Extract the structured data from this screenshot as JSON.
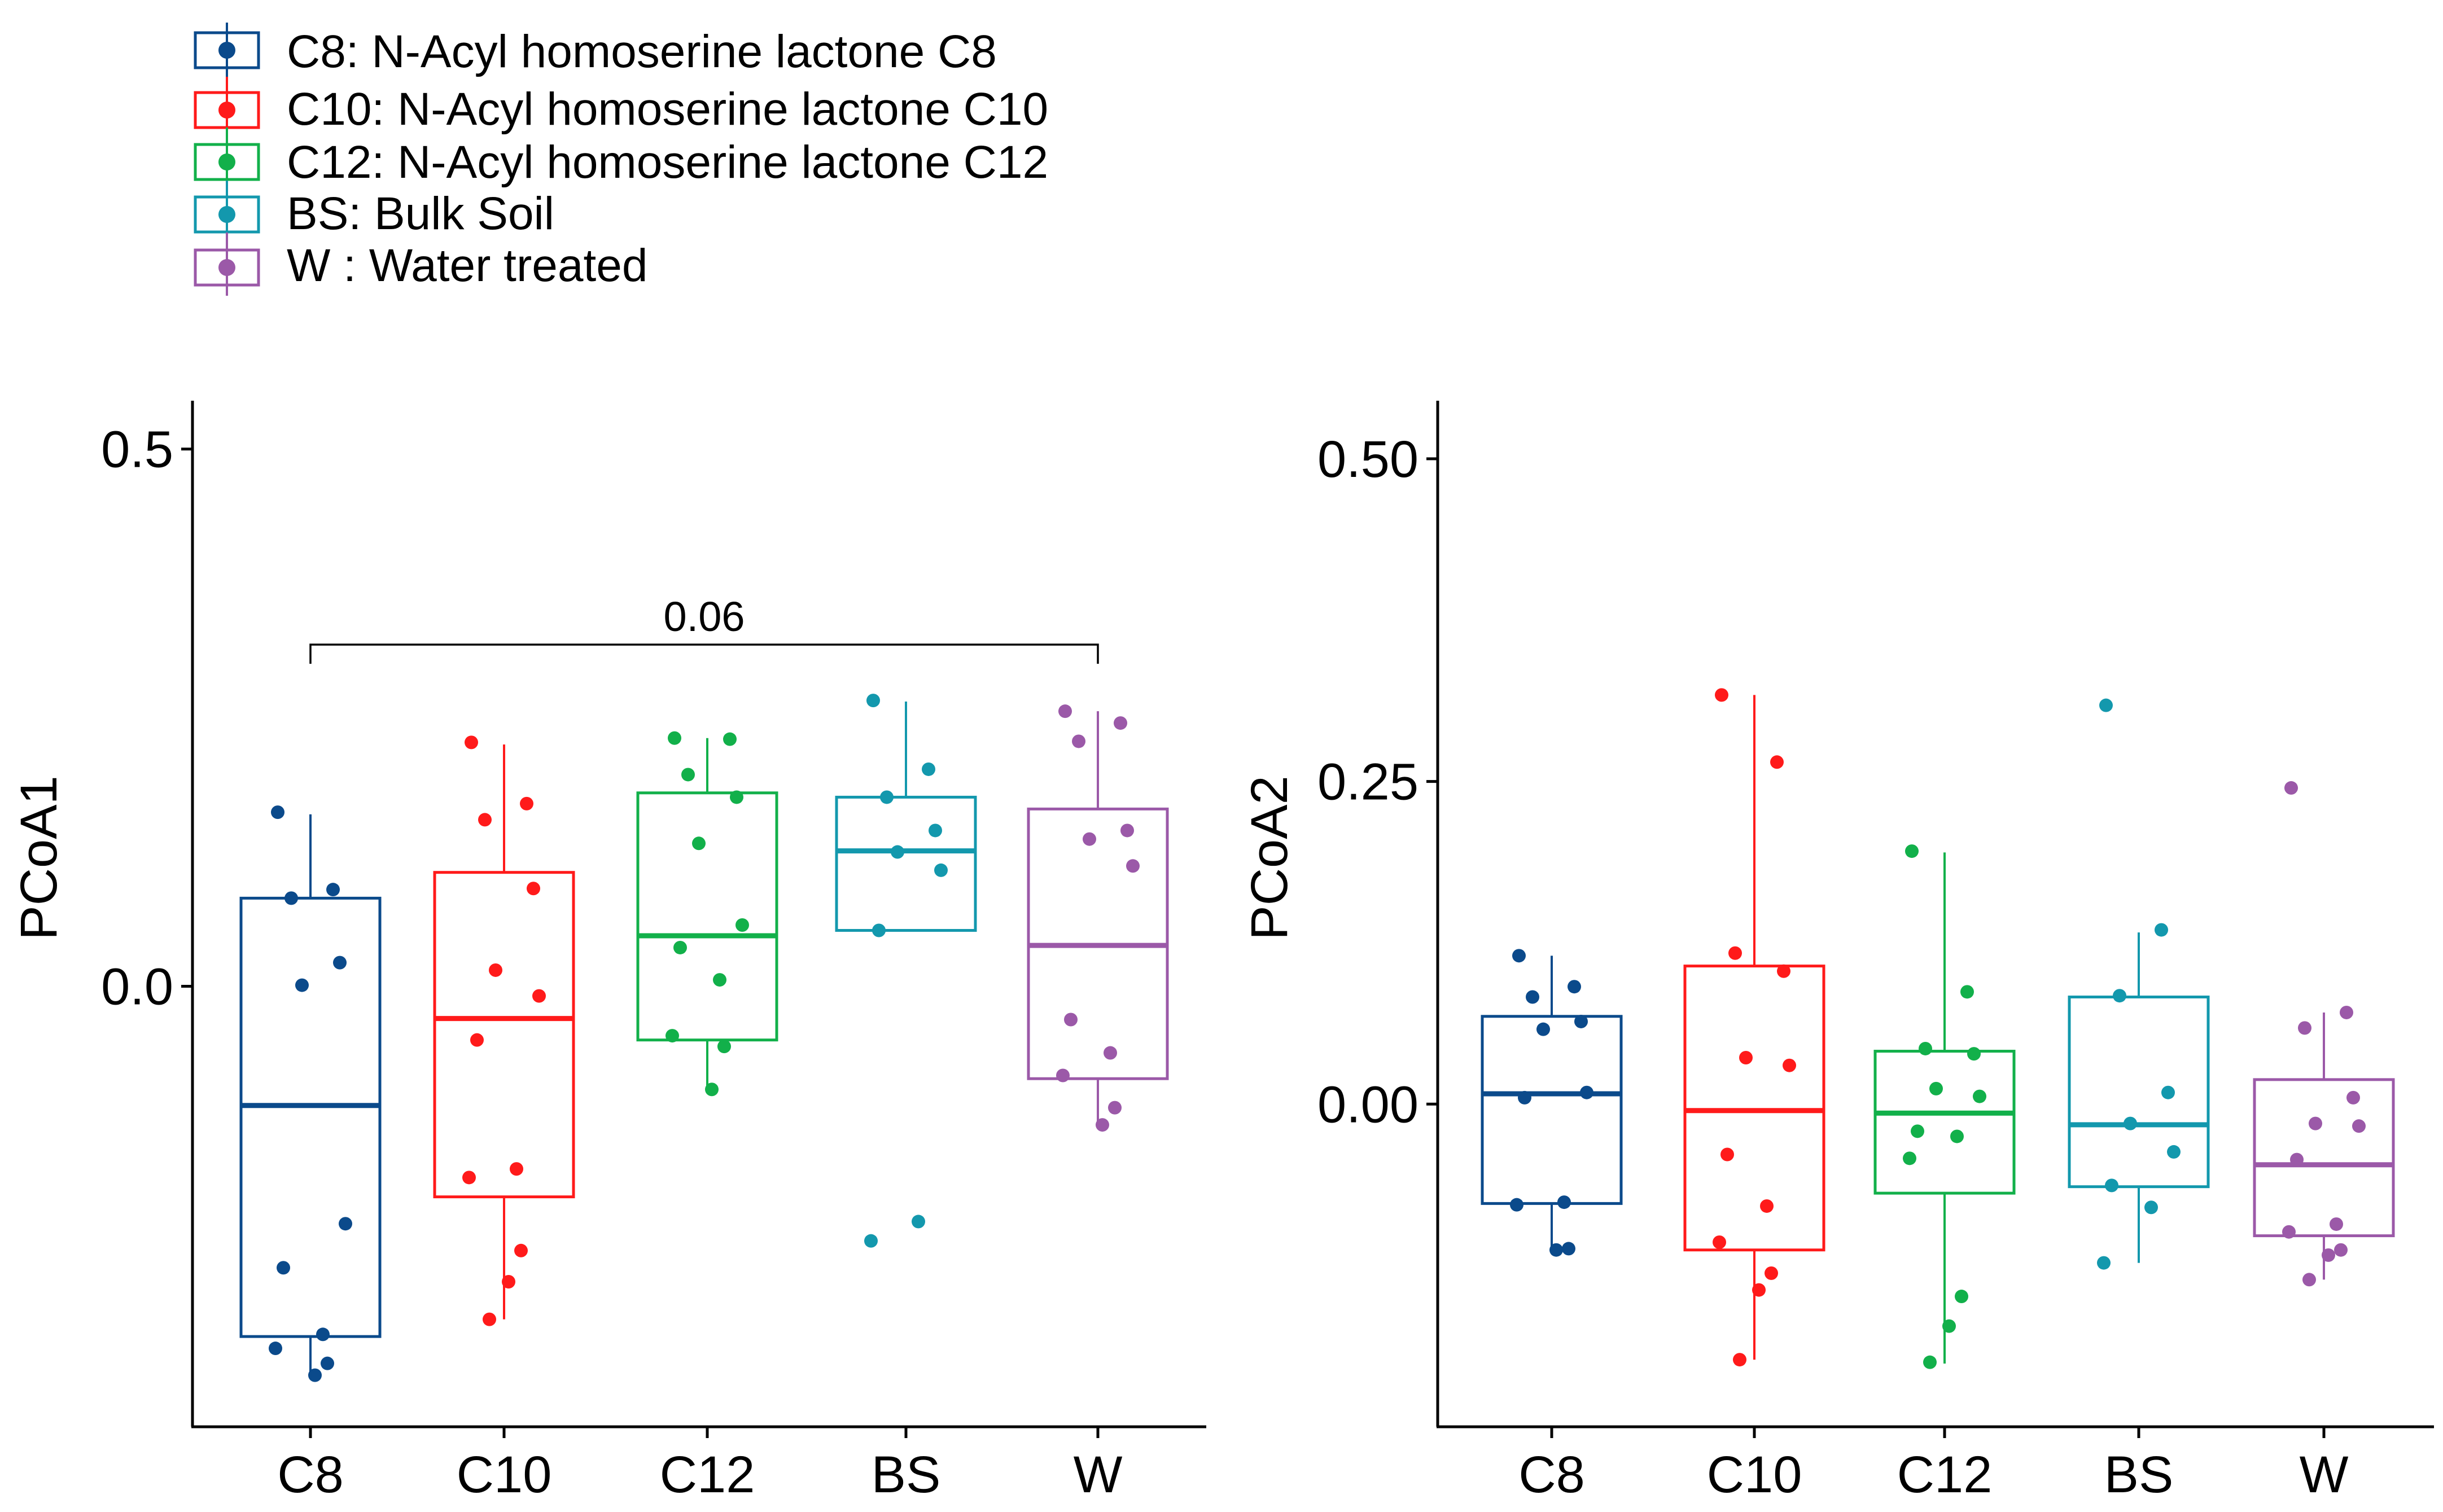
{
  "legend": {
    "entries": [
      {
        "key": "C8",
        "label": "C8: N-Acyl homoserine lactone C8",
        "color": "#0b4a8b"
      },
      {
        "key": "C10",
        "label": "C10: N-Acyl homoserine lactone C10",
        "color": "#ff1a1a"
      },
      {
        "key": "C12",
        "label": "C12: N-Acyl homoserine lactone C12",
        "color": "#12b04a"
      },
      {
        "key": "BS",
        "label": "BS: Bulk Soil",
        "color": "#1398ad"
      },
      {
        "key": "W",
        "label": "W  : Water treated",
        "color": "#9b59a8"
      }
    ]
  },
  "chart_data": [
    {
      "type": "box",
      "ylabel": "PCoA1",
      "xlabel": "",
      "categories": [
        "C8",
        "C10",
        "C12",
        "BS",
        "W"
      ],
      "ylim": [
        -0.41,
        0.545
      ],
      "yticks": [
        0.0,
        0.5
      ],
      "ytick_labels": [
        "0.0",
        "0.5"
      ],
      "annotation": {
        "from": "C8",
        "to": "W",
        "label": "0.06",
        "y": 0.318
      },
      "boxes": [
        {
          "group": "C8",
          "q1": -0.326,
          "median": -0.111,
          "q3": 0.082,
          "whisker_low": -0.364,
          "whisker_high": 0.16,
          "points": [
            0.162,
            0.09,
            0.082,
            0.022,
            0.001,
            -0.221,
            -0.262,
            -0.324,
            -0.337,
            -0.351,
            -0.362
          ]
        },
        {
          "group": "C10",
          "q1": -0.196,
          "median": -0.03,
          "q3": 0.106,
          "whisker_low": -0.31,
          "whisker_high": 0.225,
          "points": [
            0.227,
            0.17,
            0.155,
            0.091,
            0.015,
            -0.009,
            -0.05,
            -0.17,
            -0.178,
            -0.246,
            -0.275,
            -0.31
          ]
        },
        {
          "group": "C12",
          "q1": -0.05,
          "median": 0.047,
          "q3": 0.18,
          "whisker_low": -0.096,
          "whisker_high": 0.231,
          "points": [
            0.231,
            0.23,
            0.197,
            0.176,
            0.133,
            0.057,
            0.036,
            0.006,
            -0.046,
            -0.056,
            -0.096
          ]
        },
        {
          "group": "BS",
          "q1": 0.052,
          "median": 0.126,
          "q3": 0.176,
          "whisker_low": 0.052,
          "whisker_high": 0.265,
          "points": [
            0.266,
            0.202,
            0.176,
            0.145,
            0.125,
            0.108,
            0.052,
            -0.219,
            -0.237
          ]
        },
        {
          "group": "W",
          "q1": -0.086,
          "median": 0.038,
          "q3": 0.165,
          "whisker_low": -0.13,
          "whisker_high": 0.256,
          "points": [
            0.256,
            0.245,
            0.228,
            0.145,
            0.137,
            0.112,
            -0.031,
            -0.062,
            -0.083,
            -0.113,
            -0.129
          ]
        }
      ]
    },
    {
      "type": "box",
      "ylabel": "PCoA2",
      "xlabel": "",
      "categories": [
        "C8",
        "C10",
        "C12",
        "BS",
        "W"
      ],
      "ylim": [
        -0.25,
        0.545
      ],
      "yticks": [
        0.0,
        0.25,
        0.5
      ],
      "ytick_labels": [
        "0.00",
        "0.25",
        "0.50"
      ],
      "boxes": [
        {
          "group": "C8",
          "q1": -0.077,
          "median": 0.008,
          "q3": 0.068,
          "whisker_low": -0.113,
          "whisker_high": 0.115,
          "points": [
            0.115,
            0.091,
            0.083,
            0.064,
            0.058,
            0.009,
            0.005,
            -0.076,
            -0.078,
            -0.112,
            -0.113
          ]
        },
        {
          "group": "C10",
          "q1": -0.113,
          "median": -0.005,
          "q3": 0.107,
          "whisker_low": -0.198,
          "whisker_high": 0.317,
          "points": [
            0.317,
            0.265,
            0.117,
            0.103,
            0.036,
            0.03,
            -0.039,
            -0.079,
            -0.107,
            -0.131,
            -0.144,
            -0.198
          ]
        },
        {
          "group": "C12",
          "q1": -0.069,
          "median": -0.007,
          "q3": 0.041,
          "whisker_low": -0.201,
          "whisker_high": 0.195,
          "points": [
            0.196,
            0.087,
            0.043,
            0.039,
            0.012,
            0.006,
            -0.021,
            -0.025,
            -0.042,
            -0.149,
            -0.172,
            -0.2
          ]
        },
        {
          "group": "BS",
          "q1": -0.064,
          "median": -0.016,
          "q3": 0.083,
          "whisker_low": -0.123,
          "whisker_high": 0.133,
          "points": [
            0.309,
            0.135,
            0.084,
            0.009,
            -0.015,
            -0.037,
            -0.063,
            -0.08,
            -0.123
          ]
        },
        {
          "group": "W",
          "q1": -0.102,
          "median": -0.047,
          "q3": 0.019,
          "whisker_low": -0.136,
          "whisker_high": 0.071,
          "points": [
            0.245,
            0.071,
            0.059,
            0.005,
            -0.015,
            -0.017,
            -0.043,
            -0.093,
            -0.099,
            -0.113,
            -0.117,
            -0.136
          ]
        }
      ]
    }
  ]
}
